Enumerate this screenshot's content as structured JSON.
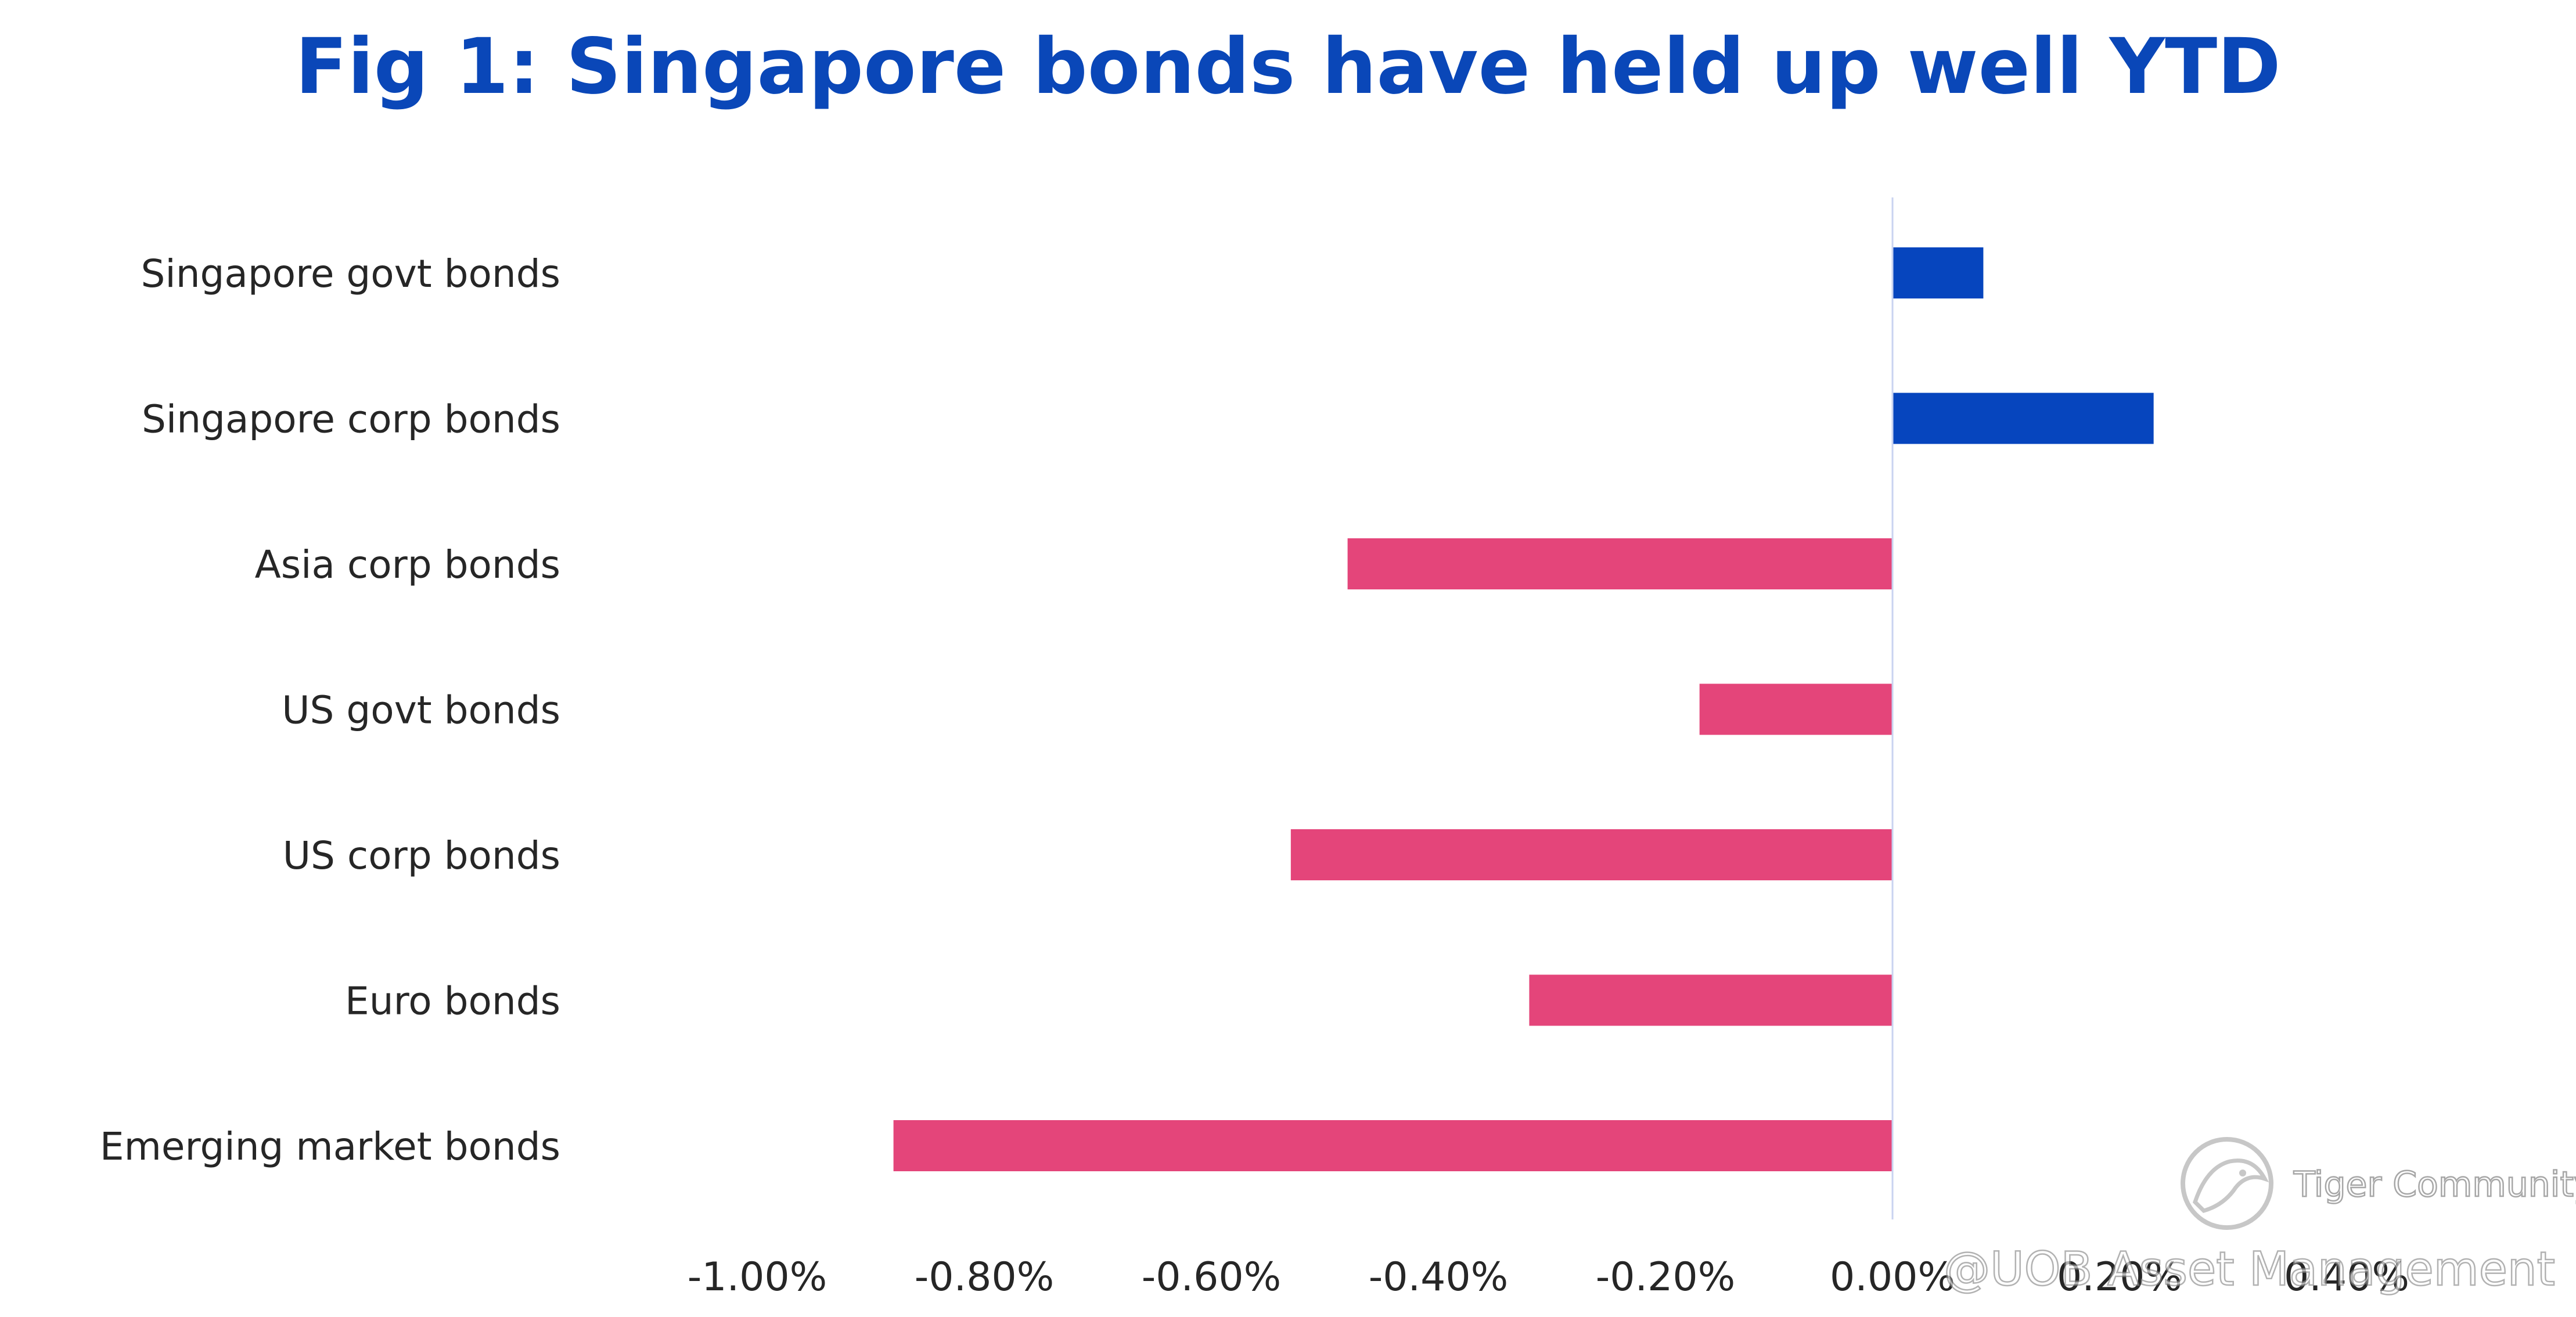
{
  "chart_data": {
    "type": "bar",
    "orientation": "horizontal",
    "title": "Fig 1: Singapore bonds have held up well YTD",
    "xlabel": "",
    "ylabel": "",
    "categories": [
      "Singapore govt bonds",
      "Singapore corp bonds",
      "Asia corp bonds",
      "US govt bonds",
      "US corp bonds",
      "Euro bonds",
      "Emerging market bonds"
    ],
    "values": [
      0.08,
      0.23,
      -0.48,
      -0.17,
      -0.53,
      -0.32,
      -0.88
    ],
    "value_unit": "%",
    "xlim": [
      -1.0,
      0.4
    ],
    "xticks": [
      -1.0,
      -0.8,
      -0.6,
      -0.4,
      -0.2,
      0.0,
      0.2,
      0.4
    ],
    "xtick_labels": [
      "-1.00%",
      "-0.80%",
      "-0.60%",
      "-0.40%",
      "-0.20%",
      "0.00%",
      "0.20%",
      "0.40%"
    ],
    "grid": false,
    "legend": "none",
    "colors": {
      "positive": "#0645BE",
      "negative": "#E4457A",
      "title": "#0A47B8",
      "axis": "#C9D3F0",
      "text": "#262626"
    }
  },
  "watermark": {
    "brand": "Tiger Community",
    "source": "@UOB Asset Management",
    "icon": "tiger-logo-icon"
  }
}
